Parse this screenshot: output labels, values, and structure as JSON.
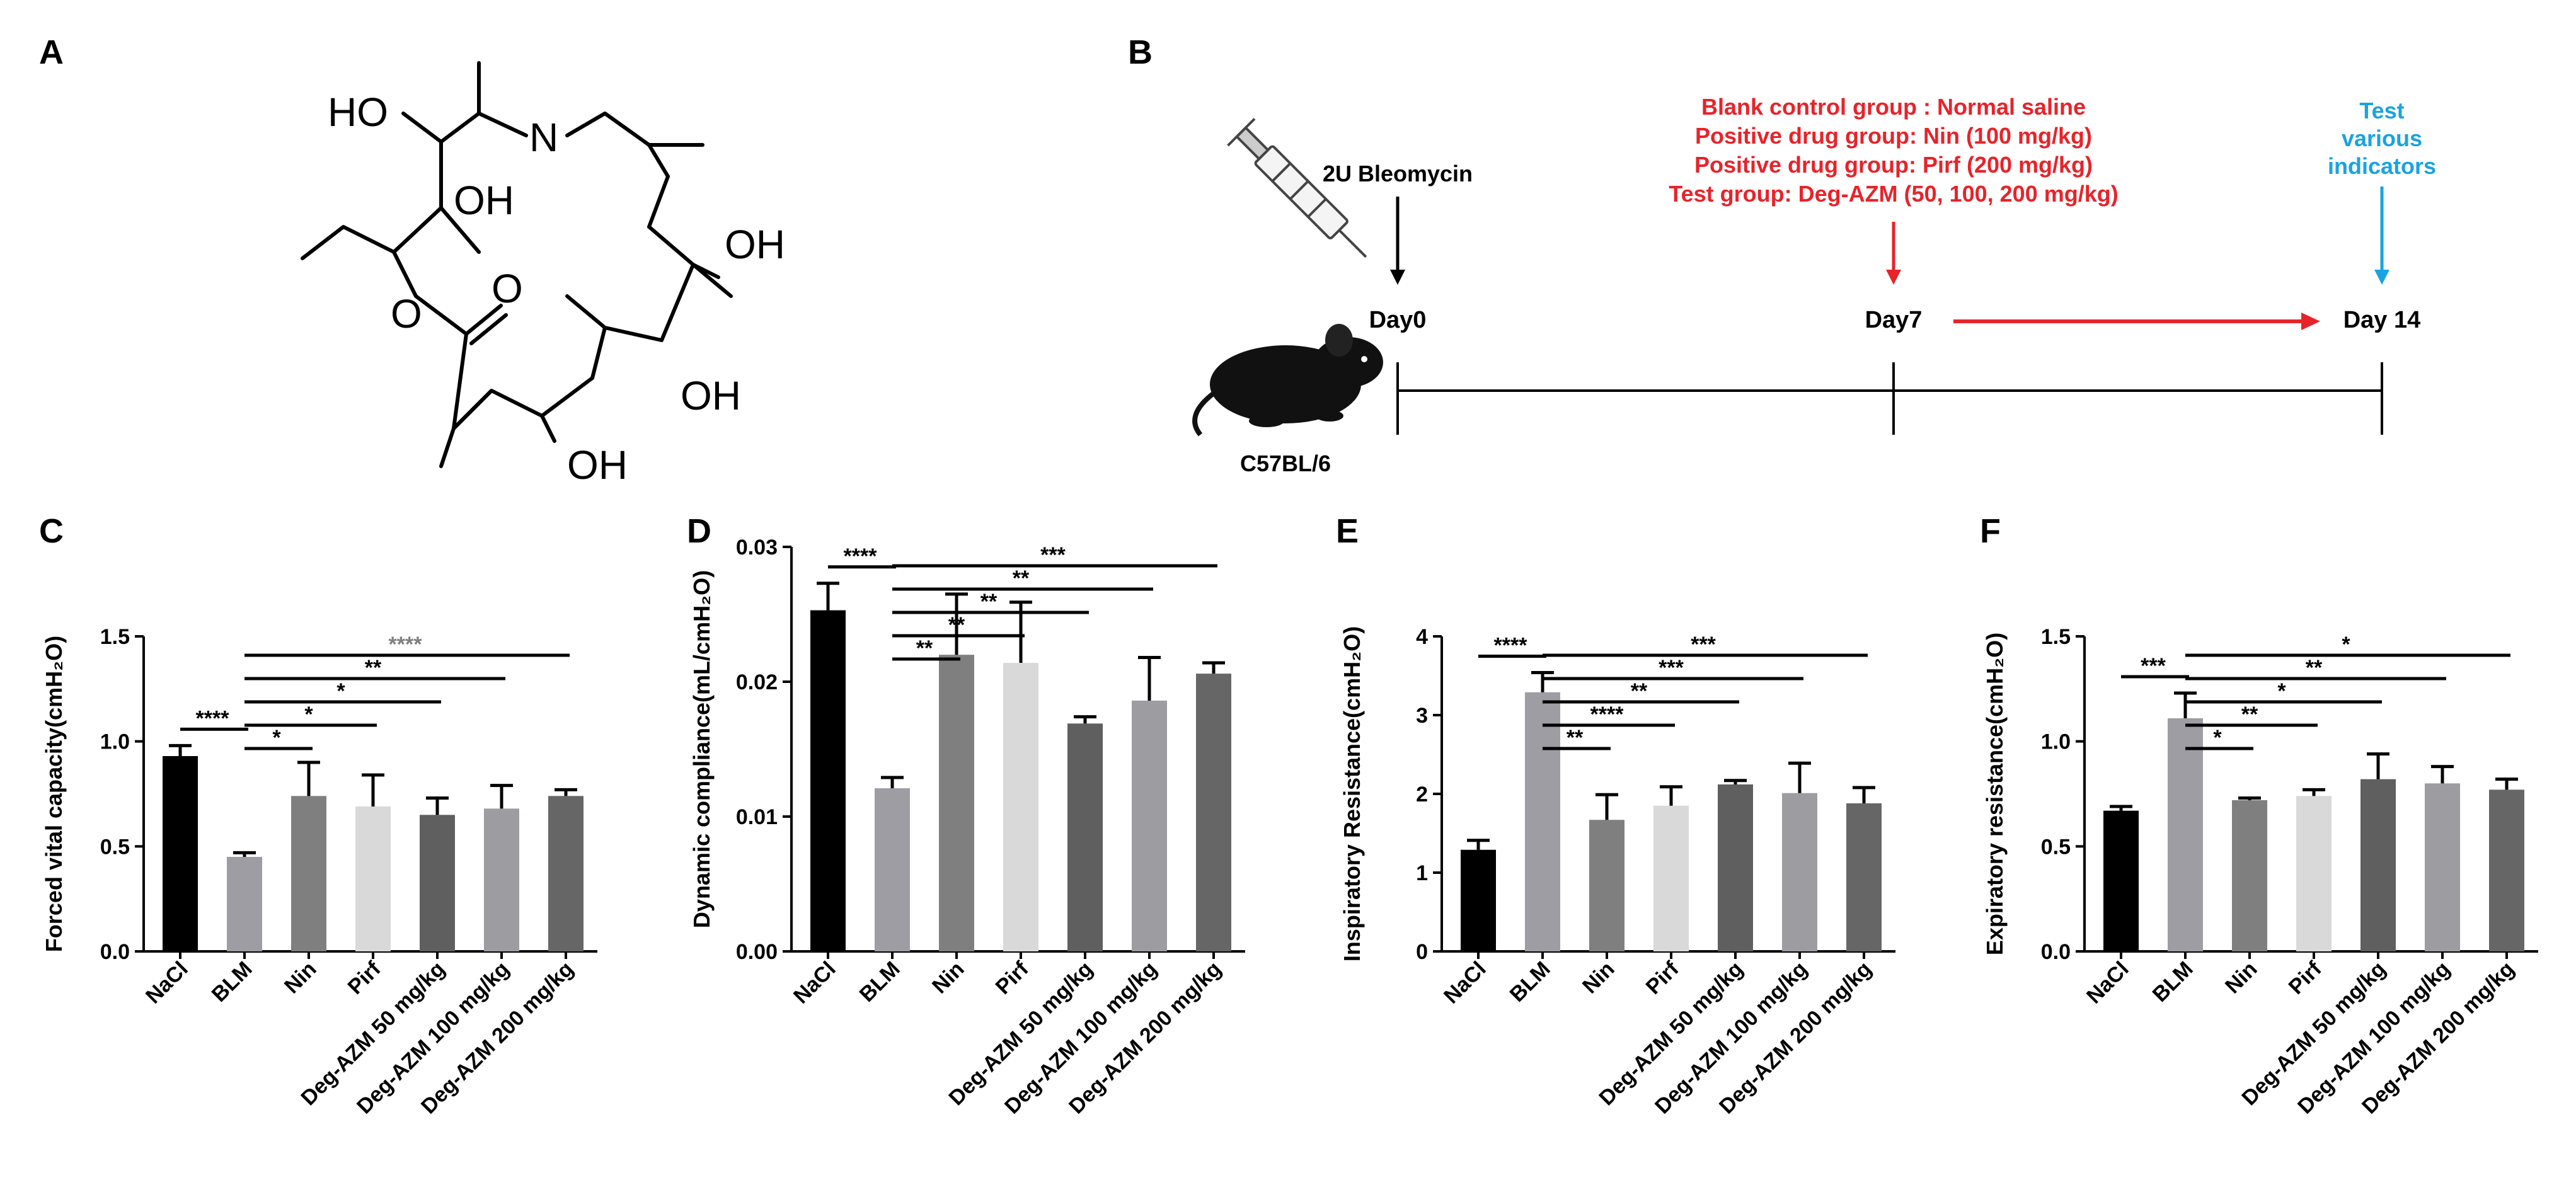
{
  "panels": {
    "a": "A",
    "b": "B",
    "c": "C",
    "d": "D",
    "e": "E",
    "f": "F"
  },
  "molecule": {
    "labels": {
      "ho_top": "HO",
      "n": "N",
      "oh_mid": "OH",
      "oh_right": "OH",
      "o_carbonyl": "O",
      "o_ring": "O",
      "oh_bottom_mid": "OH",
      "oh_bottom": "OH"
    }
  },
  "timeline": {
    "bleomycin": "2U Bleomycin",
    "groups": [
      "Blank control group : Normal saline",
      "Positive drug group: Nin (100 mg/kg)",
      "Positive drug group: Pirf (200 mg/kg)",
      "Test group: Deg-AZM (50, 100, 200 mg/kg)"
    ],
    "test_label": [
      "Test",
      "various",
      "indicators"
    ],
    "days": [
      "Day0",
      "Day7",
      "Day 14"
    ],
    "mouse": "C57BL/6",
    "colors": {
      "red": "#e8232a",
      "blue": "#1aa3e0"
    }
  },
  "chart_data": [
    {
      "type": "bar",
      "categories": [
        "NaCl",
        "BLM",
        "Nin",
        "Pirf",
        "Deg-AZM 50 mg/kg",
        "Deg-AZM 100 mg/kg",
        "Deg-AZM 200 mg/kg"
      ],
      "values": [
        0.93,
        0.45,
        0.74,
        0.69,
        0.65,
        0.68,
        0.74
      ],
      "errors": [
        0.05,
        0.02,
        0.16,
        0.15,
        0.08,
        0.11,
        0.03
      ],
      "ylabel": "Forced vital capacity(cmH₂O)",
      "ylim": [
        0,
        1.5
      ],
      "yticks": [
        "0.0",
        "0.5",
        "1.0",
        "1.5"
      ],
      "yticks_values": [
        0,
        0.5,
        1.0,
        1.5
      ],
      "significance": [
        {
          "from": 0,
          "to": 1,
          "label": "****",
          "color": "#000000"
        },
        {
          "from": 1,
          "to": 2,
          "label": "*",
          "color": "#000000"
        },
        {
          "from": 1,
          "to": 3,
          "label": "*",
          "color": "#000000"
        },
        {
          "from": 1,
          "to": 4,
          "label": "*",
          "color": "#000000"
        },
        {
          "from": 1,
          "to": 5,
          "label": "**",
          "color": "#000000"
        },
        {
          "from": 1,
          "to": 6,
          "label": "****",
          "color": "#808080"
        }
      ]
    },
    {
      "type": "bar",
      "categories": [
        "NaCl",
        "BLM",
        "Nin",
        "Pirf",
        "Deg-AZM 50 mg/kg",
        "Deg-AZM 100 mg/kg",
        "Deg-AZM 200 mg/kg"
      ],
      "values": [
        0.0253,
        0.0121,
        0.022,
        0.0214,
        0.0169,
        0.0186,
        0.0206
      ],
      "errors": [
        0.002,
        0.0008,
        0.0045,
        0.0045,
        0.0005,
        0.0032,
        0.0008
      ],
      "ylabel": "Dynamic compliance(mL/cmH₂O)",
      "ylim": [
        0,
        0.03
      ],
      "yticks": [
        "0.00",
        "0.01",
        "0.02",
        "0.03"
      ],
      "yticks_values": [
        0,
        0.01,
        0.02,
        0.03
      ],
      "significance": [
        {
          "from": 0,
          "to": 1,
          "label": "****",
          "color": "#000000"
        },
        {
          "from": 1,
          "to": 2,
          "label": "**",
          "color": "#000000"
        },
        {
          "from": 1,
          "to": 3,
          "label": "**",
          "color": "#000000"
        },
        {
          "from": 1,
          "to": 4,
          "label": "**",
          "color": "#000000"
        },
        {
          "from": 1,
          "to": 5,
          "label": "**",
          "color": "#000000"
        },
        {
          "from": 1,
          "to": 6,
          "label": "***",
          "color": "#000000"
        }
      ]
    },
    {
      "type": "bar",
      "categories": [
        "NaCl",
        "BLM",
        "Nin",
        "Pirf",
        "Deg-AZM 50 mg/kg",
        "Deg-AZM 100 mg/kg",
        "Deg-AZM 200 mg/kg"
      ],
      "values": [
        1.29,
        3.29,
        1.67,
        1.85,
        2.12,
        2.01,
        1.88
      ],
      "errors": [
        0.12,
        0.25,
        0.32,
        0.24,
        0.05,
        0.38,
        0.2
      ],
      "ylabel": "Inspiratory Resistance(cmH₂O)",
      "ylim": [
        0,
        4
      ],
      "yticks": [
        "0",
        "1",
        "2",
        "3",
        "4"
      ],
      "yticks_values": [
        0,
        1,
        2,
        3,
        4
      ],
      "significance": [
        {
          "from": 0,
          "to": 1,
          "label": "****",
          "color": "#000000"
        },
        {
          "from": 1,
          "to": 2,
          "label": "**",
          "color": "#000000"
        },
        {
          "from": 1,
          "to": 3,
          "label": "****",
          "color": "#000000"
        },
        {
          "from": 1,
          "to": 4,
          "label": "**",
          "color": "#000000"
        },
        {
          "from": 1,
          "to": 5,
          "label": "***",
          "color": "#000000"
        },
        {
          "from": 1,
          "to": 6,
          "label": "***",
          "color": "#000000"
        }
      ]
    },
    {
      "type": "bar",
      "categories": [
        "NaCl",
        "BLM",
        "Nin",
        "Pirf",
        "Deg-AZM 50 mg/kg",
        "Deg-AZM 100 mg/kg",
        "Deg-AZM 200 mg/kg"
      ],
      "values": [
        0.67,
        1.11,
        0.72,
        0.74,
        0.82,
        0.8,
        0.77
      ],
      "errors": [
        0.02,
        0.12,
        0.01,
        0.03,
        0.12,
        0.08,
        0.05
      ],
      "ylabel": "Expiratory resistance(cmH₂O)",
      "ylim": [
        0,
        1.5
      ],
      "yticks": [
        "0.0",
        "0.5",
        "1.0",
        "1.5"
      ],
      "yticks_values": [
        0,
        0.5,
        1.0,
        1.5
      ],
      "significance": [
        {
          "from": 1,
          "to": 0,
          "label": "***",
          "color": "#000000"
        },
        {
          "from": 1,
          "to": 2,
          "label": "*",
          "color": "#000000"
        },
        {
          "from": 1,
          "to": 3,
          "label": "**",
          "color": "#000000"
        },
        {
          "from": 1,
          "to": 4,
          "label": "*",
          "color": "#000000"
        },
        {
          "from": 1,
          "to": 5,
          "label": "**",
          "color": "#000000"
        },
        {
          "from": 1,
          "to": 6,
          "label": "*",
          "color": "#000000"
        }
      ]
    }
  ],
  "bar_colors": [
    "#000000",
    "#9e9da3",
    "#7f7f7f",
    "#d9d9d9",
    "#5f5f5f",
    "#9d9da1",
    "#666666"
  ]
}
